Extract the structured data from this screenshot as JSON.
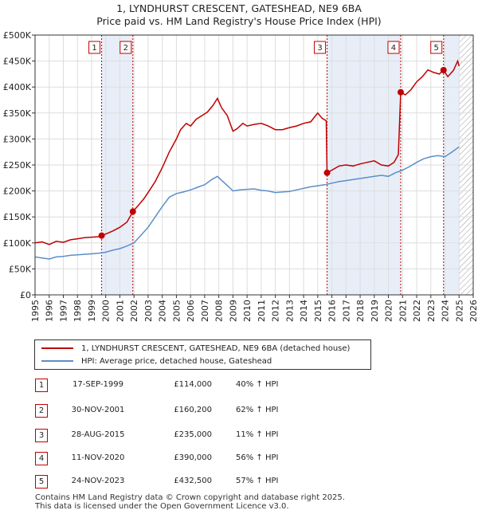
{
  "title": {
    "line1": "1, LYNDHURST CRESCENT, GATESHEAD, NE9 6BA",
    "line2": "Price paid vs. HM Land Registry's House Price Index (HPI)"
  },
  "legend": {
    "property_label": "1, LYNDHURST CRESCENT, GATESHEAD, NE9 6BA (detached house)",
    "hpi_label": "HPI: Average price, detached house, Gateshead"
  },
  "transactions": [
    {
      "num": "1",
      "date": "17-SEP-1999",
      "price": "£114,000",
      "hpi": "40% ↑ HPI"
    },
    {
      "num": "2",
      "date": "30-NOV-2001",
      "price": "£160,200",
      "hpi": "62% ↑ HPI"
    },
    {
      "num": "3",
      "date": "28-AUG-2015",
      "price": "£235,000",
      "hpi": "11% ↑ HPI"
    },
    {
      "num": "4",
      "date": "11-NOV-2020",
      "price": "£390,000",
      "hpi": "56% ↑ HPI"
    },
    {
      "num": "5",
      "date": "24-NOV-2023",
      "price": "£432,500",
      "hpi": "57% ↑ HPI"
    }
  ],
  "footer": {
    "line1": "Contains HM Land Registry data © Crown copyright and database right 2025.",
    "line2": "This data is licensed under the Open Government Licence v3.0."
  },
  "colors": {
    "property": "#c00000",
    "hpi": "#5b8fc9",
    "shade": "#e8eef8",
    "grid": "#dddddd"
  },
  "chart_data": {
    "type": "line",
    "xlim": [
      1995,
      2026
    ],
    "ylim": [
      0,
      500000
    ],
    "x_ticks": [
      1995,
      1996,
      1997,
      1998,
      1999,
      2000,
      2001,
      2002,
      2003,
      2004,
      2005,
      2006,
      2007,
      2008,
      2009,
      2010,
      2011,
      2012,
      2013,
      2014,
      2015,
      2016,
      2017,
      2018,
      2019,
      2020,
      2021,
      2022,
      2023,
      2024,
      2025,
      2026
    ],
    "y_ticks": [
      {
        "value": 0,
        "label": "£0"
      },
      {
        "value": 50000,
        "label": "£50K"
      },
      {
        "value": 100000,
        "label": "£100K"
      },
      {
        "value": 150000,
        "label": "£150K"
      },
      {
        "value": 200000,
        "label": "£200K"
      },
      {
        "value": 250000,
        "label": "£250K"
      },
      {
        "value": 300000,
        "label": "£300K"
      },
      {
        "value": 350000,
        "label": "£350K"
      },
      {
        "value": 400000,
        "label": "£400K"
      },
      {
        "value": 450000,
        "label": "£450K"
      },
      {
        "value": 500000,
        "label": "£500K"
      }
    ],
    "grid": true,
    "shaded_spans": [
      [
        1999.71,
        2001.92
      ],
      [
        2015.66,
        2020.87
      ],
      [
        2023.9,
        2025.0
      ]
    ],
    "forecast_hatch": [
      2025.0,
      2026
    ],
    "sale_markers": [
      {
        "label": "1",
        "x": 1999.71,
        "y": 114000
      },
      {
        "label": "2",
        "x": 2001.92,
        "y": 160200
      },
      {
        "label": "3",
        "x": 2015.66,
        "y": 235000
      },
      {
        "label": "4",
        "x": 2020.87,
        "y": 390000
      },
      {
        "label": "5",
        "x": 2023.9,
        "y": 432500
      }
    ],
    "series": [
      {
        "name": "1, LYNDHURST CRESCENT, GATESHEAD, NE9 6BA (detached house)",
        "points": [
          [
            1995.0,
            100000
          ],
          [
            1995.5,
            102000
          ],
          [
            1996.0,
            97000
          ],
          [
            1996.5,
            103000
          ],
          [
            1997.0,
            101000
          ],
          [
            1997.5,
            106000
          ],
          [
            1998.0,
            108000
          ],
          [
            1998.5,
            110000
          ],
          [
            1999.0,
            111000
          ],
          [
            1999.5,
            112000
          ],
          [
            1999.71,
            114000
          ],
          [
            2000.0,
            117000
          ],
          [
            2000.5,
            123000
          ],
          [
            2001.0,
            130000
          ],
          [
            2001.5,
            140000
          ],
          [
            2001.92,
            160200
          ],
          [
            2002.3,
            172000
          ],
          [
            2002.7,
            185000
          ],
          [
            2003.0,
            197000
          ],
          [
            2003.5,
            218000
          ],
          [
            2004.0,
            245000
          ],
          [
            2004.5,
            275000
          ],
          [
            2005.0,
            300000
          ],
          [
            2005.3,
            318000
          ],
          [
            2005.7,
            330000
          ],
          [
            2006.0,
            325000
          ],
          [
            2006.4,
            338000
          ],
          [
            2006.8,
            345000
          ],
          [
            2007.2,
            352000
          ],
          [
            2007.6,
            365000
          ],
          [
            2007.9,
            378000
          ],
          [
            2008.2,
            360000
          ],
          [
            2008.6,
            345000
          ],
          [
            2009.0,
            315000
          ],
          [
            2009.3,
            320000
          ],
          [
            2009.7,
            330000
          ],
          [
            2010.0,
            325000
          ],
          [
            2010.5,
            328000
          ],
          [
            2011.0,
            330000
          ],
          [
            2011.5,
            325000
          ],
          [
            2012.0,
            318000
          ],
          [
            2012.5,
            318000
          ],
          [
            2013.0,
            322000
          ],
          [
            2013.5,
            325000
          ],
          [
            2014.0,
            330000
          ],
          [
            2014.5,
            333000
          ],
          [
            2015.0,
            350000
          ],
          [
            2015.3,
            340000
          ],
          [
            2015.6,
            335000
          ],
          [
            2015.66,
            235000
          ],
          [
            2016.0,
            240000
          ],
          [
            2016.5,
            248000
          ],
          [
            2017.0,
            250000
          ],
          [
            2017.5,
            248000
          ],
          [
            2018.0,
            252000
          ],
          [
            2018.5,
            255000
          ],
          [
            2019.0,
            258000
          ],
          [
            2019.5,
            250000
          ],
          [
            2020.0,
            248000
          ],
          [
            2020.4,
            255000
          ],
          [
            2020.7,
            270000
          ],
          [
            2020.87,
            390000
          ],
          [
            2021.2,
            385000
          ],
          [
            2021.6,
            395000
          ],
          [
            2022.0,
            410000
          ],
          [
            2022.4,
            420000
          ],
          [
            2022.8,
            433000
          ],
          [
            2023.2,
            428000
          ],
          [
            2023.6,
            425000
          ],
          [
            2023.9,
            432500
          ],
          [
            2024.2,
            420000
          ],
          [
            2024.6,
            432000
          ],
          [
            2024.9,
            450000
          ],
          [
            2025.0,
            440000
          ]
        ]
      },
      {
        "name": "HPI: Average price, detached house, Gateshead",
        "points": [
          [
            1995.0,
            73000
          ],
          [
            1995.5,
            71000
          ],
          [
            1996.0,
            69000
          ],
          [
            1996.5,
            73000
          ],
          [
            1997.0,
            74000
          ],
          [
            1997.5,
            76000
          ],
          [
            1998.0,
            77000
          ],
          [
            1998.5,
            78000
          ],
          [
            1999.0,
            79000
          ],
          [
            1999.5,
            80000
          ],
          [
            2000.0,
            82000
          ],
          [
            2000.5,
            86000
          ],
          [
            2001.0,
            89000
          ],
          [
            2001.5,
            94000
          ],
          [
            2002.0,
            100000
          ],
          [
            2002.5,
            115000
          ],
          [
            2003.0,
            130000
          ],
          [
            2003.5,
            150000
          ],
          [
            2004.0,
            170000
          ],
          [
            2004.5,
            188000
          ],
          [
            2005.0,
            195000
          ],
          [
            2005.5,
            198000
          ],
          [
            2006.0,
            202000
          ],
          [
            2006.5,
            207000
          ],
          [
            2007.0,
            212000
          ],
          [
            2007.5,
            222000
          ],
          [
            2007.9,
            228000
          ],
          [
            2008.3,
            218000
          ],
          [
            2008.7,
            208000
          ],
          [
            2009.0,
            200000
          ],
          [
            2009.5,
            202000
          ],
          [
            2010.0,
            203000
          ],
          [
            2010.5,
            204000
          ],
          [
            2011.0,
            201000
          ],
          [
            2011.5,
            200000
          ],
          [
            2012.0,
            197000
          ],
          [
            2012.5,
            198000
          ],
          [
            2013.0,
            199000
          ],
          [
            2013.5,
            202000
          ],
          [
            2014.0,
            205000
          ],
          [
            2014.5,
            208000
          ],
          [
            2015.0,
            210000
          ],
          [
            2015.5,
            212000
          ],
          [
            2016.0,
            215000
          ],
          [
            2016.5,
            218000
          ],
          [
            2017.0,
            220000
          ],
          [
            2017.5,
            222000
          ],
          [
            2018.0,
            224000
          ],
          [
            2018.5,
            226000
          ],
          [
            2019.0,
            228000
          ],
          [
            2019.5,
            230000
          ],
          [
            2020.0,
            228000
          ],
          [
            2020.5,
            235000
          ],
          [
            2021.0,
            240000
          ],
          [
            2021.5,
            247000
          ],
          [
            2022.0,
            255000
          ],
          [
            2022.5,
            262000
          ],
          [
            2023.0,
            266000
          ],
          [
            2023.5,
            268000
          ],
          [
            2024.0,
            266000
          ],
          [
            2024.5,
            275000
          ],
          [
            2025.0,
            285000
          ]
        ]
      }
    ]
  }
}
